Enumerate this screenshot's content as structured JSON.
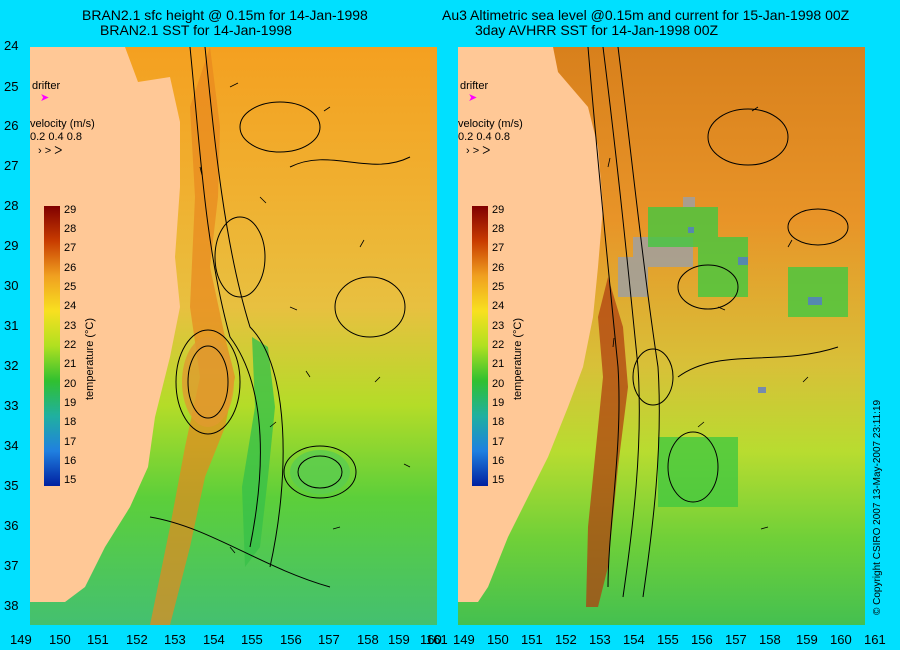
{
  "left_panel": {
    "title_line1": "BRAN2.1 sfc height @ 0.15m for 14-Jan-1998",
    "title_line2": "BRAN2.1 SST for 14-Jan-1998"
  },
  "right_panel": {
    "title_line1": "Au3 Altimetric sea level  @0.15m and current for 15-Jan-1998 00Z",
    "title_line2": "3day AVHRR SST for 14-Jan-1998 00Z"
  },
  "latitude_labels": [
    "24",
    "25",
    "26",
    "27",
    "28",
    "29",
    "30",
    "31",
    "32",
    "33",
    "34",
    "35",
    "36",
    "37",
    "38"
  ],
  "longitude_labels": [
    "149",
    "150",
    "151",
    "152",
    "153",
    "154",
    "155",
    "156",
    "157",
    "158",
    "159",
    "160",
    "161"
  ],
  "legend": {
    "drifter_label": "drifter",
    "velocity_label": "velocity (m/s)",
    "velocity_scale": "0.2 0.4 0.8",
    "colorbar_title": "temperature (°C)",
    "colorbar_ticks": [
      "29",
      "28",
      "27",
      "26",
      "25",
      "24",
      "23",
      "22",
      "21",
      "20",
      "19",
      "18",
      "17",
      "16",
      "15"
    ]
  },
  "copyright": "© Copyright CSIRO 2007   13-May-2007 23:11:19",
  "colors": {
    "background": "#00e0ff",
    "land": "#ffc896",
    "drifter_marker": "#ff00ff"
  }
}
